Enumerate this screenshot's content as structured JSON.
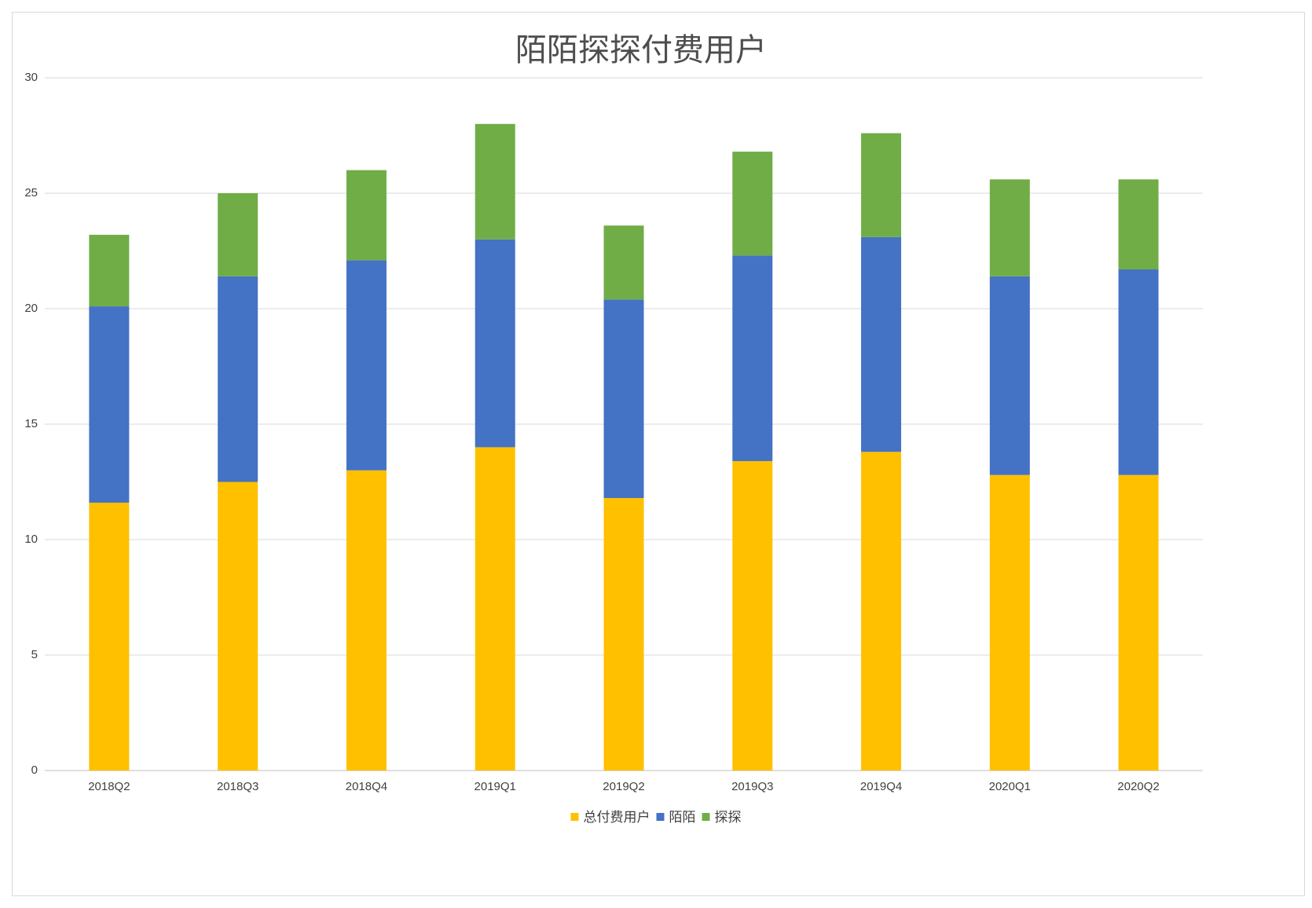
{
  "chart_data": {
    "type": "bar",
    "stacked": true,
    "title": "陌陌探探付费用户",
    "xlabel": "",
    "ylabel": "",
    "categories": [
      "2018Q2",
      "2018Q3",
      "2018Q4",
      "2019Q1",
      "2019Q2",
      "2019Q3",
      "2019Q4",
      "2020Q1",
      "2020Q2"
    ],
    "series": [
      {
        "name": "总付费用户",
        "color": "#FFC000",
        "values": [
          11.6,
          12.5,
          13.0,
          14.0,
          11.8,
          13.4,
          13.8,
          12.8,
          12.8
        ]
      },
      {
        "name": "陌陌",
        "color": "#4472C4",
        "values": [
          8.5,
          8.9,
          9.1,
          9.0,
          8.6,
          8.9,
          9.3,
          8.6,
          8.9
        ]
      },
      {
        "name": "探探",
        "color": "#70AD47",
        "values": [
          3.1,
          3.6,
          3.9,
          5.0,
          3.2,
          4.5,
          4.5,
          4.2,
          3.9
        ]
      }
    ],
    "ylim": [
      0,
      30
    ],
    "yticks": [
      0,
      5,
      10,
      15,
      20,
      25,
      30
    ],
    "grid": true,
    "legend_position": "bottom"
  }
}
